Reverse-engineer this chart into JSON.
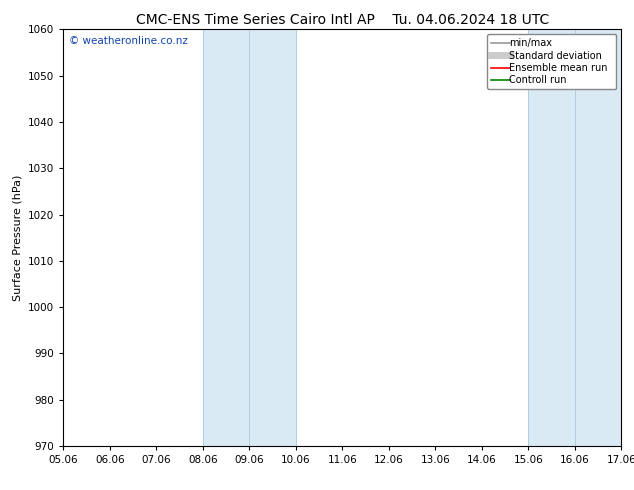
{
  "title_left": "CMC-ENS Time Series Cairo Intl AP",
  "title_right": "Tu. 04.06.2024 18 UTC",
  "ylabel": "Surface Pressure (hPa)",
  "ylim": [
    970,
    1060
  ],
  "yticks": [
    970,
    980,
    990,
    1000,
    1010,
    1020,
    1030,
    1040,
    1050,
    1060
  ],
  "xlabels": [
    "05.06",
    "06.06",
    "07.06",
    "08.06",
    "09.06",
    "10.06",
    "11.06",
    "12.06",
    "13.06",
    "14.06",
    "15.06",
    "16.06",
    "17.06"
  ],
  "xmin": 0,
  "xmax": 12,
  "shaded_bands": [
    {
      "xmin": 3,
      "xmax": 4,
      "color": "#daeaf5"
    },
    {
      "xmin": 4,
      "xmax": 5,
      "color": "#daeaf5"
    },
    {
      "xmin": 10,
      "xmax": 11,
      "color": "#daeaf5"
    },
    {
      "xmin": 11,
      "xmax": 12,
      "color": "#daeaf5"
    }
  ],
  "band_edge_color": "#b0cfe0",
  "background_color": "#ffffff",
  "plot_bg_color": "#ffffff",
  "watermark": "© weatheronline.co.nz",
  "watermark_color": "#1144aa",
  "legend_entries": [
    {
      "label": "min/max",
      "color": "#999999",
      "lw": 1.2,
      "ls": "-"
    },
    {
      "label": "Standard deviation",
      "color": "#cccccc",
      "lw": 5,
      "ls": "-"
    },
    {
      "label": "Ensemble mean run",
      "color": "#ff0000",
      "lw": 1.2,
      "ls": "-"
    },
    {
      "label": "Controll run",
      "color": "#008800",
      "lw": 1.2,
      "ls": "-"
    }
  ],
  "title_fontsize": 10,
  "axis_fontsize": 8,
  "tick_fontsize": 7.5,
  "watermark_fontsize": 7.5,
  "legend_fontsize": 7
}
